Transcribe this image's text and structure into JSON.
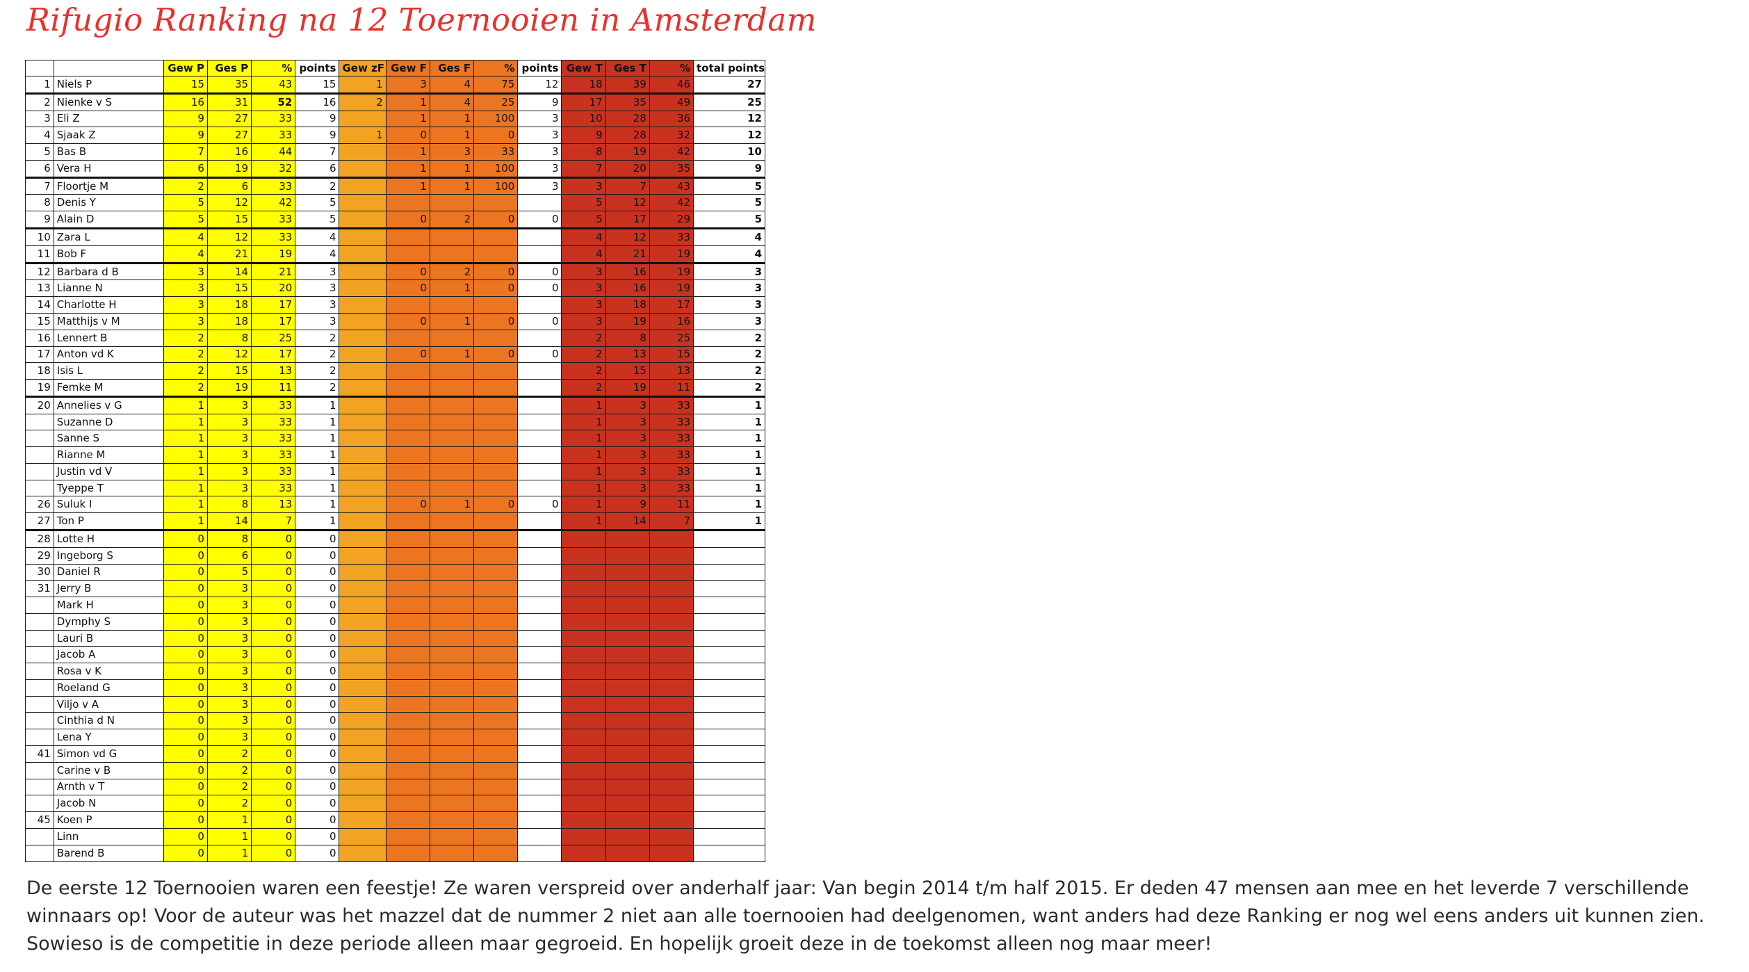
{
  "title": "Rifugio Ranking na 12 Toernooien in Amsterdam",
  "table": {
    "headers": [
      "",
      "",
      "Gew P",
      "Ges P",
      "%",
      "points",
      "Gew zF",
      "Gew F",
      "Ges F",
      "%",
      "points",
      "Gew T",
      "Ges T",
      "%",
      "total points"
    ],
    "group_end_after": [
      0,
      5,
      8,
      10,
      18,
      26
    ],
    "rows": [
      [
        "1",
        "Niels P",
        "15",
        "35",
        "43",
        "15",
        "1",
        "3",
        "4",
        "75",
        "12",
        "18",
        "39",
        "46",
        "27"
      ],
      [
        "2",
        "Nienke v S",
        "16",
        "31",
        "52",
        "16",
        "2",
        "1",
        "4",
        "25",
        "9",
        "17",
        "35",
        "49",
        "25"
      ],
      [
        "3",
        "Eli Z",
        "9",
        "27",
        "33",
        "9",
        "",
        "1",
        "1",
        "100",
        "3",
        "10",
        "28",
        "36",
        "12"
      ],
      [
        "4",
        "Sjaak Z",
        "9",
        "27",
        "33",
        "9",
        "1",
        "0",
        "1",
        "0",
        "3",
        "9",
        "28",
        "32",
        "12"
      ],
      [
        "5",
        "Bas B",
        "7",
        "16",
        "44",
        "7",
        "",
        "1",
        "3",
        "33",
        "3",
        "8",
        "19",
        "42",
        "10"
      ],
      [
        "6",
        "Vera H",
        "6",
        "19",
        "32",
        "6",
        "",
        "1",
        "1",
        "100",
        "3",
        "7",
        "20",
        "35",
        "9"
      ],
      [
        "7",
        "Floortje M",
        "2",
        "6",
        "33",
        "2",
        "",
        "1",
        "1",
        "100",
        "3",
        "3",
        "7",
        "43",
        "5"
      ],
      [
        "8",
        "Denis Y",
        "5",
        "12",
        "42",
        "5",
        "",
        "",
        "",
        "",
        "",
        "5",
        "12",
        "42",
        "5"
      ],
      [
        "9",
        "Alain D",
        "5",
        "15",
        "33",
        "5",
        "",
        "0",
        "2",
        "0",
        "0",
        "5",
        "17",
        "29",
        "5"
      ],
      [
        "10",
        "Zara L",
        "4",
        "12",
        "33",
        "4",
        "",
        "",
        "",
        "",
        "",
        "4",
        "12",
        "33",
        "4"
      ],
      [
        "11",
        "Bob F",
        "4",
        "21",
        "19",
        "4",
        "",
        "",
        "",
        "",
        "",
        "4",
        "21",
        "19",
        "4"
      ],
      [
        "12",
        "Barbara d B",
        "3",
        "14",
        "21",
        "3",
        "",
        "0",
        "2",
        "0",
        "0",
        "3",
        "16",
        "19",
        "3"
      ],
      [
        "13",
        "Lianne N",
        "3",
        "15",
        "20",
        "3",
        "",
        "0",
        "1",
        "0",
        "0",
        "3",
        "16",
        "19",
        "3"
      ],
      [
        "14",
        "Charlotte H",
        "3",
        "18",
        "17",
        "3",
        "",
        "",
        "",
        "",
        "",
        "3",
        "18",
        "17",
        "3"
      ],
      [
        "15",
        "Matthijs v M",
        "3",
        "18",
        "17",
        "3",
        "",
        "0",
        "1",
        "0",
        "0",
        "3",
        "19",
        "16",
        "3"
      ],
      [
        "16",
        "Lennert B",
        "2",
        "8",
        "25",
        "2",
        "",
        "",
        "",
        "",
        "",
        "2",
        "8",
        "25",
        "2"
      ],
      [
        "17",
        "Anton vd K",
        "2",
        "12",
        "17",
        "2",
        "",
        "0",
        "1",
        "0",
        "0",
        "2",
        "13",
        "15",
        "2"
      ],
      [
        "18",
        "Isis L",
        "2",
        "15",
        "13",
        "2",
        "",
        "",
        "",
        "",
        "",
        "2",
        "15",
        "13",
        "2"
      ],
      [
        "19",
        "Femke M",
        "2",
        "19",
        "11",
        "2",
        "",
        "",
        "",
        "",
        "",
        "2",
        "19",
        "11",
        "2"
      ],
      [
        "20",
        "Annelies v G",
        "1",
        "3",
        "33",
        "1",
        "",
        "",
        "",
        "",
        "",
        "1",
        "3",
        "33",
        "1"
      ],
      [
        "",
        "Suzanne D",
        "1",
        "3",
        "33",
        "1",
        "",
        "",
        "",
        "",
        "",
        "1",
        "3",
        "33",
        "1"
      ],
      [
        "",
        "Sanne S",
        "1",
        "3",
        "33",
        "1",
        "",
        "",
        "",
        "",
        "",
        "1",
        "3",
        "33",
        "1"
      ],
      [
        "",
        "Rianne M",
        "1",
        "3",
        "33",
        "1",
        "",
        "",
        "",
        "",
        "",
        "1",
        "3",
        "33",
        "1"
      ],
      [
        "",
        "Justin vd V",
        "1",
        "3",
        "33",
        "1",
        "",
        "",
        "",
        "",
        "",
        "1",
        "3",
        "33",
        "1"
      ],
      [
        "",
        "Tyeppe T",
        "1",
        "3",
        "33",
        "1",
        "",
        "",
        "",
        "",
        "",
        "1",
        "3",
        "33",
        "1"
      ],
      [
        "26",
        "Suluk I",
        "1",
        "8",
        "13",
        "1",
        "",
        "0",
        "1",
        "0",
        "0",
        "1",
        "9",
        "11",
        "1"
      ],
      [
        "27",
        "Ton P",
        "1",
        "14",
        "7",
        "1",
        "",
        "",
        "",
        "",
        "",
        "1",
        "14",
        "7",
        "1"
      ],
      [
        "28",
        "Lotte H",
        "0",
        "8",
        "0",
        "0",
        "",
        "",
        "",
        "",
        "",
        "",
        "",
        "",
        ""
      ],
      [
        "29",
        "Ingeborg S",
        "0",
        "6",
        "0",
        "0",
        "",
        "",
        "",
        "",
        "",
        "",
        "",
        "",
        ""
      ],
      [
        "30",
        "Daniel R",
        "0",
        "5",
        "0",
        "0",
        "",
        "",
        "",
        "",
        "",
        "",
        "",
        "",
        ""
      ],
      [
        "31",
        "Jerry B",
        "0",
        "3",
        "0",
        "0",
        "",
        "",
        "",
        "",
        "",
        "",
        "",
        "",
        ""
      ],
      [
        "",
        "Mark H",
        "0",
        "3",
        "0",
        "0",
        "",
        "",
        "",
        "",
        "",
        "",
        "",
        "",
        ""
      ],
      [
        "",
        "Dymphy S",
        "0",
        "3",
        "0",
        "0",
        "",
        "",
        "",
        "",
        "",
        "",
        "",
        "",
        ""
      ],
      [
        "",
        "Lauri B",
        "0",
        "3",
        "0",
        "0",
        "",
        "",
        "",
        "",
        "",
        "",
        "",
        "",
        ""
      ],
      [
        "",
        "Jacob A",
        "0",
        "3",
        "0",
        "0",
        "",
        "",
        "",
        "",
        "",
        "",
        "",
        "",
        ""
      ],
      [
        "",
        "Rosa v K",
        "0",
        "3",
        "0",
        "0",
        "",
        "",
        "",
        "",
        "",
        "",
        "",
        "",
        ""
      ],
      [
        "",
        "Roeland G",
        "0",
        "3",
        "0",
        "0",
        "",
        "",
        "",
        "",
        "",
        "",
        "",
        "",
        ""
      ],
      [
        "",
        "Viljo v A",
        "0",
        "3",
        "0",
        "0",
        "",
        "",
        "",
        "",
        "",
        "",
        "",
        "",
        ""
      ],
      [
        "",
        "Cinthia d N",
        "0",
        "3",
        "0",
        "0",
        "",
        "",
        "",
        "",
        "",
        "",
        "",
        "",
        ""
      ],
      [
        "",
        "Lena Y",
        "0",
        "3",
        "0",
        "0",
        "",
        "",
        "",
        "",
        "",
        "",
        "",
        "",
        ""
      ],
      [
        "41",
        "Simon vd G",
        "0",
        "2",
        "0",
        "0",
        "",
        "",
        "",
        "",
        "",
        "",
        "",
        "",
        ""
      ],
      [
        "",
        "Carine v B",
        "0",
        "2",
        "0",
        "0",
        "",
        "",
        "",
        "",
        "",
        "",
        "",
        "",
        ""
      ],
      [
        "",
        "Arnth v T",
        "0",
        "2",
        "0",
        "0",
        "",
        "",
        "",
        "",
        "",
        "",
        "",
        "",
        ""
      ],
      [
        "",
        "Jacob N",
        "0",
        "2",
        "0",
        "0",
        "",
        "",
        "",
        "",
        "",
        "",
        "",
        "",
        ""
      ],
      [
        "45",
        "Koen P",
        "0",
        "1",
        "0",
        "0",
        "",
        "",
        "",
        "",
        "",
        "",
        "",
        "",
        ""
      ],
      [
        "",
        "Linn",
        "0",
        "1",
        "0",
        "0",
        "",
        "",
        "",
        "",
        "",
        "",
        "",
        "",
        ""
      ],
      [
        "",
        "Barend B",
        "0",
        "1",
        "0",
        "0",
        "",
        "",
        "",
        "",
        "",
        "",
        "",
        "",
        ""
      ]
    ]
  },
  "description": "De eerste 12 Toernooien waren een feestje! Ze waren verspreid over anderhalf jaar: Van begin 2014 t/m half 2015. Er deden 47 mensen aan mee en het leverde 7 verschillende winnaars op! Voor de auteur was het mazzel dat de nummer 2 niet aan alle toernooien had deelgenomen, want anders had deze Ranking er nog wel eens anders uit kunnen zien. Sowieso is de competitie in deze periode alleen maar gegroeid. En hopelijk groeit deze in de toekomst alleen nog maar meer!"
}
